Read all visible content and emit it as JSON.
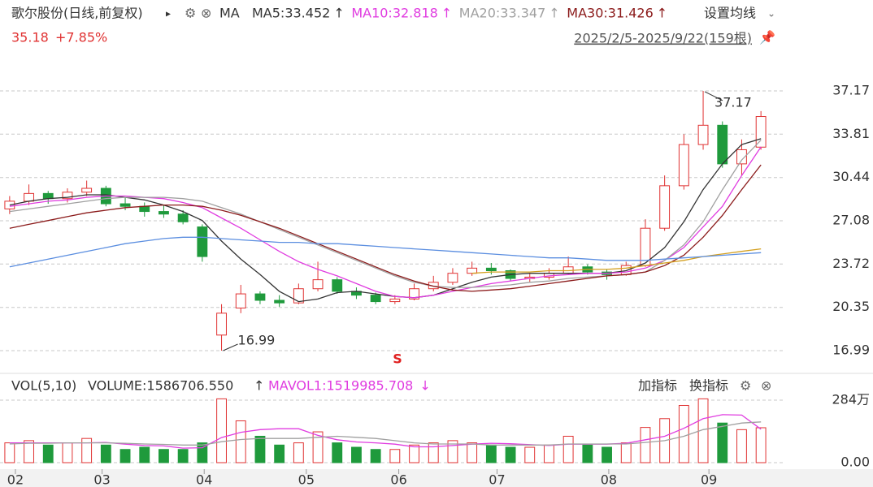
{
  "header": {
    "title": "歌尔股份(日线,前复权)",
    "play": "▸",
    "ma_label": "MA",
    "change": "+7.85%",
    "range": "2025/2/5-2025/9/22(159根)",
    "settings": "设置均线",
    "signal": "S"
  },
  "chart_data": [
    {
      "type": "candlestick",
      "open": [
        28.0,
        28.6,
        29.2,
        28.8,
        29.3,
        29.6,
        28.4,
        28.2,
        27.8,
        27.6,
        26.6,
        18.2,
        20.3,
        21.4,
        20.9,
        20.7,
        21.8,
        22.5,
        21.6,
        21.3,
        20.8,
        21.0,
        21.8,
        22.3,
        23.0,
        23.4,
        23.2,
        22.6,
        22.7,
        23.0,
        23.5,
        23.1,
        22.9,
        23.6,
        26.5,
        29.8,
        33.0,
        34.5,
        31.5,
        32.8
      ],
      "high": [
        29.0,
        29.9,
        29.4,
        29.6,
        30.2,
        29.8,
        28.9,
        28.5,
        28.3,
        27.9,
        26.8,
        20.6,
        22.1,
        21.6,
        21.3,
        22.2,
        23.9,
        22.7,
        21.9,
        21.5,
        21.3,
        22.2,
        22.8,
        23.4,
        23.9,
        23.8,
        23.3,
        23.0,
        23.4,
        24.3,
        23.7,
        23.3,
        23.9,
        27.2,
        30.6,
        33.8,
        37.17,
        34.8,
        33.4,
        35.6
      ],
      "low": [
        27.6,
        28.3,
        28.4,
        28.5,
        29.0,
        28.2,
        27.9,
        27.4,
        27.3,
        26.8,
        23.9,
        16.99,
        19.9,
        20.6,
        20.4,
        20.6,
        21.6,
        21.4,
        21.0,
        20.6,
        20.6,
        20.9,
        21.6,
        22.1,
        22.8,
        22.9,
        22.4,
        22.3,
        22.5,
        22.9,
        22.9,
        22.5,
        22.8,
        23.5,
        26.3,
        29.5,
        32.6,
        31.2,
        30.6,
        32.6
      ],
      "close": [
        28.6,
        29.2,
        28.8,
        29.3,
        29.6,
        28.4,
        28.2,
        27.8,
        27.6,
        27.0,
        24.3,
        19.9,
        21.4,
        20.9,
        20.7,
        21.8,
        22.5,
        21.6,
        21.3,
        20.8,
        21.0,
        21.8,
        22.3,
        23.0,
        23.4,
        23.2,
        22.6,
        22.7,
        23.0,
        23.5,
        23.1,
        22.9,
        23.6,
        26.5,
        29.8,
        33.0,
        34.5,
        31.5,
        32.6,
        35.18
      ],
      "up_color": "#e03232",
      "down_color": "#1f9a3c",
      "xlim": [
        0,
        40
      ],
      "xticks": [
        {
          "value": 0.8,
          "label": "02"
        },
        {
          "value": 5.3,
          "label": "03"
        },
        {
          "value": 10.6,
          "label": "04"
        },
        {
          "value": 15.9,
          "label": "05"
        },
        {
          "value": 20.7,
          "label": "06"
        },
        {
          "value": 25.8,
          "label": "07"
        },
        {
          "value": 31.6,
          "label": "08"
        },
        {
          "value": 36.8,
          "label": "09"
        }
      ],
      "ylim": [
        15.54,
        38.24
      ],
      "yticks": [
        16.99,
        20.35,
        23.72,
        27.08,
        30.44,
        33.81,
        37.17
      ],
      "grid": true,
      "series": [
        {
          "name": "MA5:33.452",
          "trend": "↑",
          "color": "#333333",
          "values": [
            28.3,
            28.6,
            28.8,
            28.9,
            29.1,
            29.1,
            28.9,
            28.7,
            28.3,
            27.8,
            27.1,
            25.5,
            24.1,
            22.9,
            21.6,
            20.8,
            21.0,
            21.5,
            21.6,
            21.4,
            21.2,
            21.1,
            21.3,
            21.8,
            22.3,
            22.7,
            22.9,
            23.0,
            23.0,
            23.0,
            23.0,
            23.0,
            23.2,
            23.8,
            25.0,
            27.0,
            29.5,
            31.5,
            33.0,
            33.452
          ]
        },
        {
          "name": "MA10:32.818",
          "trend": "↑",
          "color": "#e03ce0",
          "values": [
            28.2,
            28.4,
            28.6,
            28.7,
            28.9,
            29.0,
            29.0,
            28.9,
            28.8,
            28.5,
            28.1,
            27.3,
            26.5,
            25.6,
            24.7,
            23.9,
            23.3,
            22.8,
            22.2,
            21.6,
            21.2,
            21.1,
            21.3,
            21.6,
            21.9,
            22.2,
            22.4,
            22.6,
            22.8,
            22.9,
            23.0,
            23.0,
            23.1,
            23.4,
            24.0,
            25.0,
            26.6,
            28.2,
            30.6,
            32.818
          ]
        },
        {
          "name": "MA20:33.347",
          "trend": "↑",
          "color": "#a0a0a0",
          "values": [
            27.8,
            28.0,
            28.2,
            28.4,
            28.6,
            28.8,
            28.9,
            28.9,
            28.9,
            28.8,
            28.6,
            28.1,
            27.6,
            27.0,
            26.4,
            25.8,
            25.2,
            24.6,
            24.0,
            23.4,
            22.8,
            22.3,
            22.0,
            21.9,
            21.9,
            22.0,
            22.1,
            22.3,
            22.4,
            22.6,
            22.7,
            22.8,
            22.9,
            23.1,
            24.0,
            25.2,
            27.0,
            29.5,
            31.8,
            33.347
          ]
        },
        {
          "name": "MA30:31.426",
          "trend": "↑",
          "color": "#8b1a1a",
          "values": [
            26.5,
            26.8,
            27.1,
            27.4,
            27.7,
            27.9,
            28.1,
            28.2,
            28.3,
            28.3,
            28.2,
            27.9,
            27.5,
            27.0,
            26.5,
            25.9,
            25.3,
            24.7,
            24.1,
            23.5,
            22.9,
            22.4,
            22.0,
            21.7,
            21.6,
            21.7,
            21.8,
            22.0,
            22.2,
            22.4,
            22.6,
            22.8,
            22.9,
            23.1,
            23.6,
            24.4,
            25.8,
            27.5,
            29.5,
            31.426
          ]
        },
        {
          "color": "#d4a020",
          "values": [
            null,
            null,
            null,
            null,
            null,
            null,
            null,
            null,
            null,
            null,
            null,
            null,
            null,
            null,
            null,
            null,
            null,
            null,
            null,
            null,
            null,
            null,
            null,
            null,
            23.0,
            23.1,
            23.1,
            23.1,
            23.2,
            23.2,
            23.3,
            23.3,
            23.4,
            23.6,
            23.8,
            24.0,
            24.3,
            24.5,
            24.7,
            24.9
          ]
        },
        {
          "color": "#5b8ee0",
          "values": [
            23.5,
            23.8,
            24.1,
            24.4,
            24.7,
            25.0,
            25.3,
            25.5,
            25.7,
            25.8,
            25.8,
            25.7,
            25.6,
            25.5,
            25.4,
            25.4,
            25.3,
            25.3,
            25.2,
            25.1,
            25.0,
            24.9,
            24.8,
            24.7,
            24.6,
            24.5,
            24.4,
            24.3,
            24.2,
            24.2,
            24.1,
            24.0,
            24.0,
            24.0,
            24.1,
            24.2,
            24.3,
            24.4,
            24.5,
            24.6
          ]
        }
      ]
    },
    {
      "type": "bar",
      "title": "VOL(5,10)",
      "volume_label": "VOLUME:1586706.550",
      "volume_trend": "↑",
      "add": "加指标",
      "swap": "换指标",
      "values": [
        900000,
        1000000,
        800000,
        900000,
        1100000,
        800000,
        600000,
        700000,
        600000,
        600000,
        900000,
        2900000,
        1900000,
        1200000,
        800000,
        900000,
        1400000,
        900000,
        700000,
        600000,
        600000,
        800000,
        900000,
        1000000,
        900000,
        800000,
        700000,
        700000,
        800000,
        1200000,
        800000,
        700000,
        900000,
        1600000,
        2000000,
        2600000,
        2900000,
        1800000,
        1500000,
        1586706.55
      ],
      "ylim": [
        0,
        2840000
      ],
      "yticks": [
        {
          "value": 0,
          "label": "0.00"
        },
        {
          "value": 2840000,
          "label": "284万"
        }
      ],
      "grid": true,
      "series": [
        {
          "name": "MAVOL1:1519985.708",
          "trend": "↓",
          "color": "#e03ce0",
          "values": [
            900000,
            900000,
            900000,
            900000,
            900000,
            920000,
            840000,
            780000,
            760000,
            660000,
            680000,
            1140000,
            1380000,
            1500000,
            1540000,
            1540000,
            1240000,
            1040000,
            940000,
            900000,
            840000,
            720000,
            720000,
            780000,
            840000,
            880000,
            860000,
            820000,
            780000,
            840000,
            840000,
            840000,
            880000,
            1040000,
            1200000,
            1560000,
            2000000,
            2180000,
            2160000,
            1519985.708
          ]
        },
        {
          "color": "#a0a0a0",
          "values": [
            850000,
            880000,
            880000,
            900000,
            900000,
            900000,
            880000,
            850000,
            830000,
            800000,
            800000,
            950000,
            1050000,
            1100000,
            1100000,
            1100000,
            1150000,
            1200000,
            1150000,
            1100000,
            1000000,
            900000,
            850000,
            850000,
            850000,
            800000,
            800000,
            800000,
            800000,
            850000,
            850000,
            850000,
            850000,
            920000,
            1000000,
            1200000,
            1500000,
            1650000,
            1800000,
            1850000
          ]
        }
      ]
    }
  ]
}
